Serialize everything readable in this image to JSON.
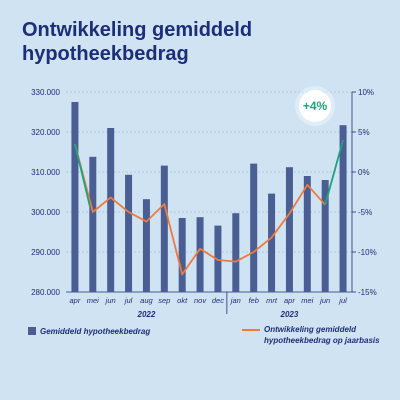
{
  "title": "Ontwikkeling gemiddeld hypotheekbedrag",
  "chart_data": {
    "type": "bar",
    "categories": [
      "apr",
      "mei",
      "jun",
      "jul",
      "aug",
      "sep",
      "okt",
      "nov",
      "dec",
      "jan",
      "feb",
      "mrt",
      "apr",
      "mei",
      "jun",
      "jul"
    ],
    "years": [
      {
        "label": "2022",
        "from": 0,
        "to": 8
      },
      {
        "label": "2023",
        "from": 9,
        "to": 15
      }
    ],
    "series": [
      {
        "name": "Gemiddeld hypotheekbedrag",
        "type": "bar",
        "axis": "left",
        "color": "#4a5e94",
        "values": [
          327500,
          313800,
          321000,
          309300,
          303200,
          311600,
          298500,
          298700,
          296600,
          299700,
          312100,
          304600,
          311200,
          309000,
          308000,
          321700
        ]
      },
      {
        "name": "Ontwikkeling gemiddeld hypotheekbedrag op jaarbasis",
        "type": "line",
        "axis": "right",
        "color": "#f07a3c",
        "last_segment_color": "#1fa37a",
        "values": [
          3.5,
          -5,
          -3.2,
          -5,
          -6.2,
          -4,
          -12.8,
          -9.6,
          -11,
          -11.2,
          -10,
          -8.2,
          -5.2,
          -1.6,
          -4.1,
          4
        ]
      }
    ],
    "y_left": {
      "min": 280000,
      "max": 330000,
      "ticks": [
        "280.000",
        "290.000",
        "300.000",
        "310.000",
        "320.000",
        "330.000"
      ]
    },
    "y_right": {
      "min": -15,
      "max": 10,
      "ticks": [
        "-15%",
        "-10%",
        "-5%",
        "0%",
        "5%",
        "10%"
      ]
    },
    "annotation": {
      "text": "+4%",
      "color": "#1fa37a"
    }
  },
  "legend": {
    "bar_label": "Gemiddeld hypotheekbedrag",
    "line_label_1": "Ontwikkeling gemiddeld",
    "line_label_2": "hypotheekbedrag op jaarbasis"
  }
}
